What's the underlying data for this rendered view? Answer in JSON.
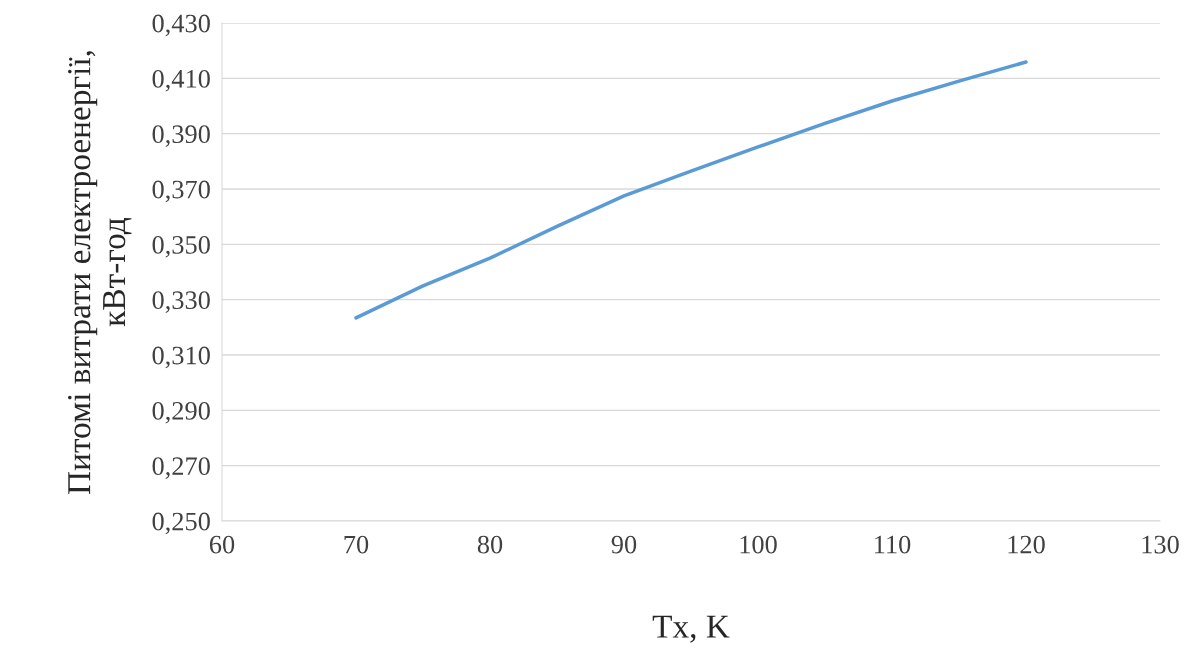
{
  "chart_data": {
    "type": "line",
    "xlabel": "Tx, K",
    "ylabel": "Питомі витрати електроенергії,\nкВт-год",
    "x": [
      70,
      75,
      80,
      85,
      90,
      95,
      100,
      105,
      110,
      115,
      120
    ],
    "series": [
      {
        "color": "#5b9bd5",
        "values": [
          0.3234,
          0.335,
          0.345,
          0.3565,
          0.3675,
          0.3765,
          0.3852,
          0.3937,
          0.4018,
          0.409,
          0.4159
        ]
      }
    ],
    "xlim": [
      60,
      130
    ],
    "xticks": [
      60,
      70,
      80,
      90,
      100,
      110,
      120,
      130
    ],
    "ylim": [
      0.25,
      0.43
    ],
    "yticks": [
      {
        "value": 0.25,
        "label": "0,250"
      },
      {
        "value": 0.27,
        "label": "0,270"
      },
      {
        "value": 0.29,
        "label": "0,290"
      },
      {
        "value": 0.31,
        "label": "0,310"
      },
      {
        "value": 0.33,
        "label": "0,330"
      },
      {
        "value": 0.35,
        "label": "0,350"
      },
      {
        "value": 0.37,
        "label": "0,370"
      },
      {
        "value": 0.39,
        "label": "0,390"
      },
      {
        "value": 0.41,
        "label": "0,410"
      },
      {
        "value": 0.43,
        "label": "0,430"
      }
    ],
    "grid": "y",
    "marker": "none",
    "line_style": "solid"
  }
}
